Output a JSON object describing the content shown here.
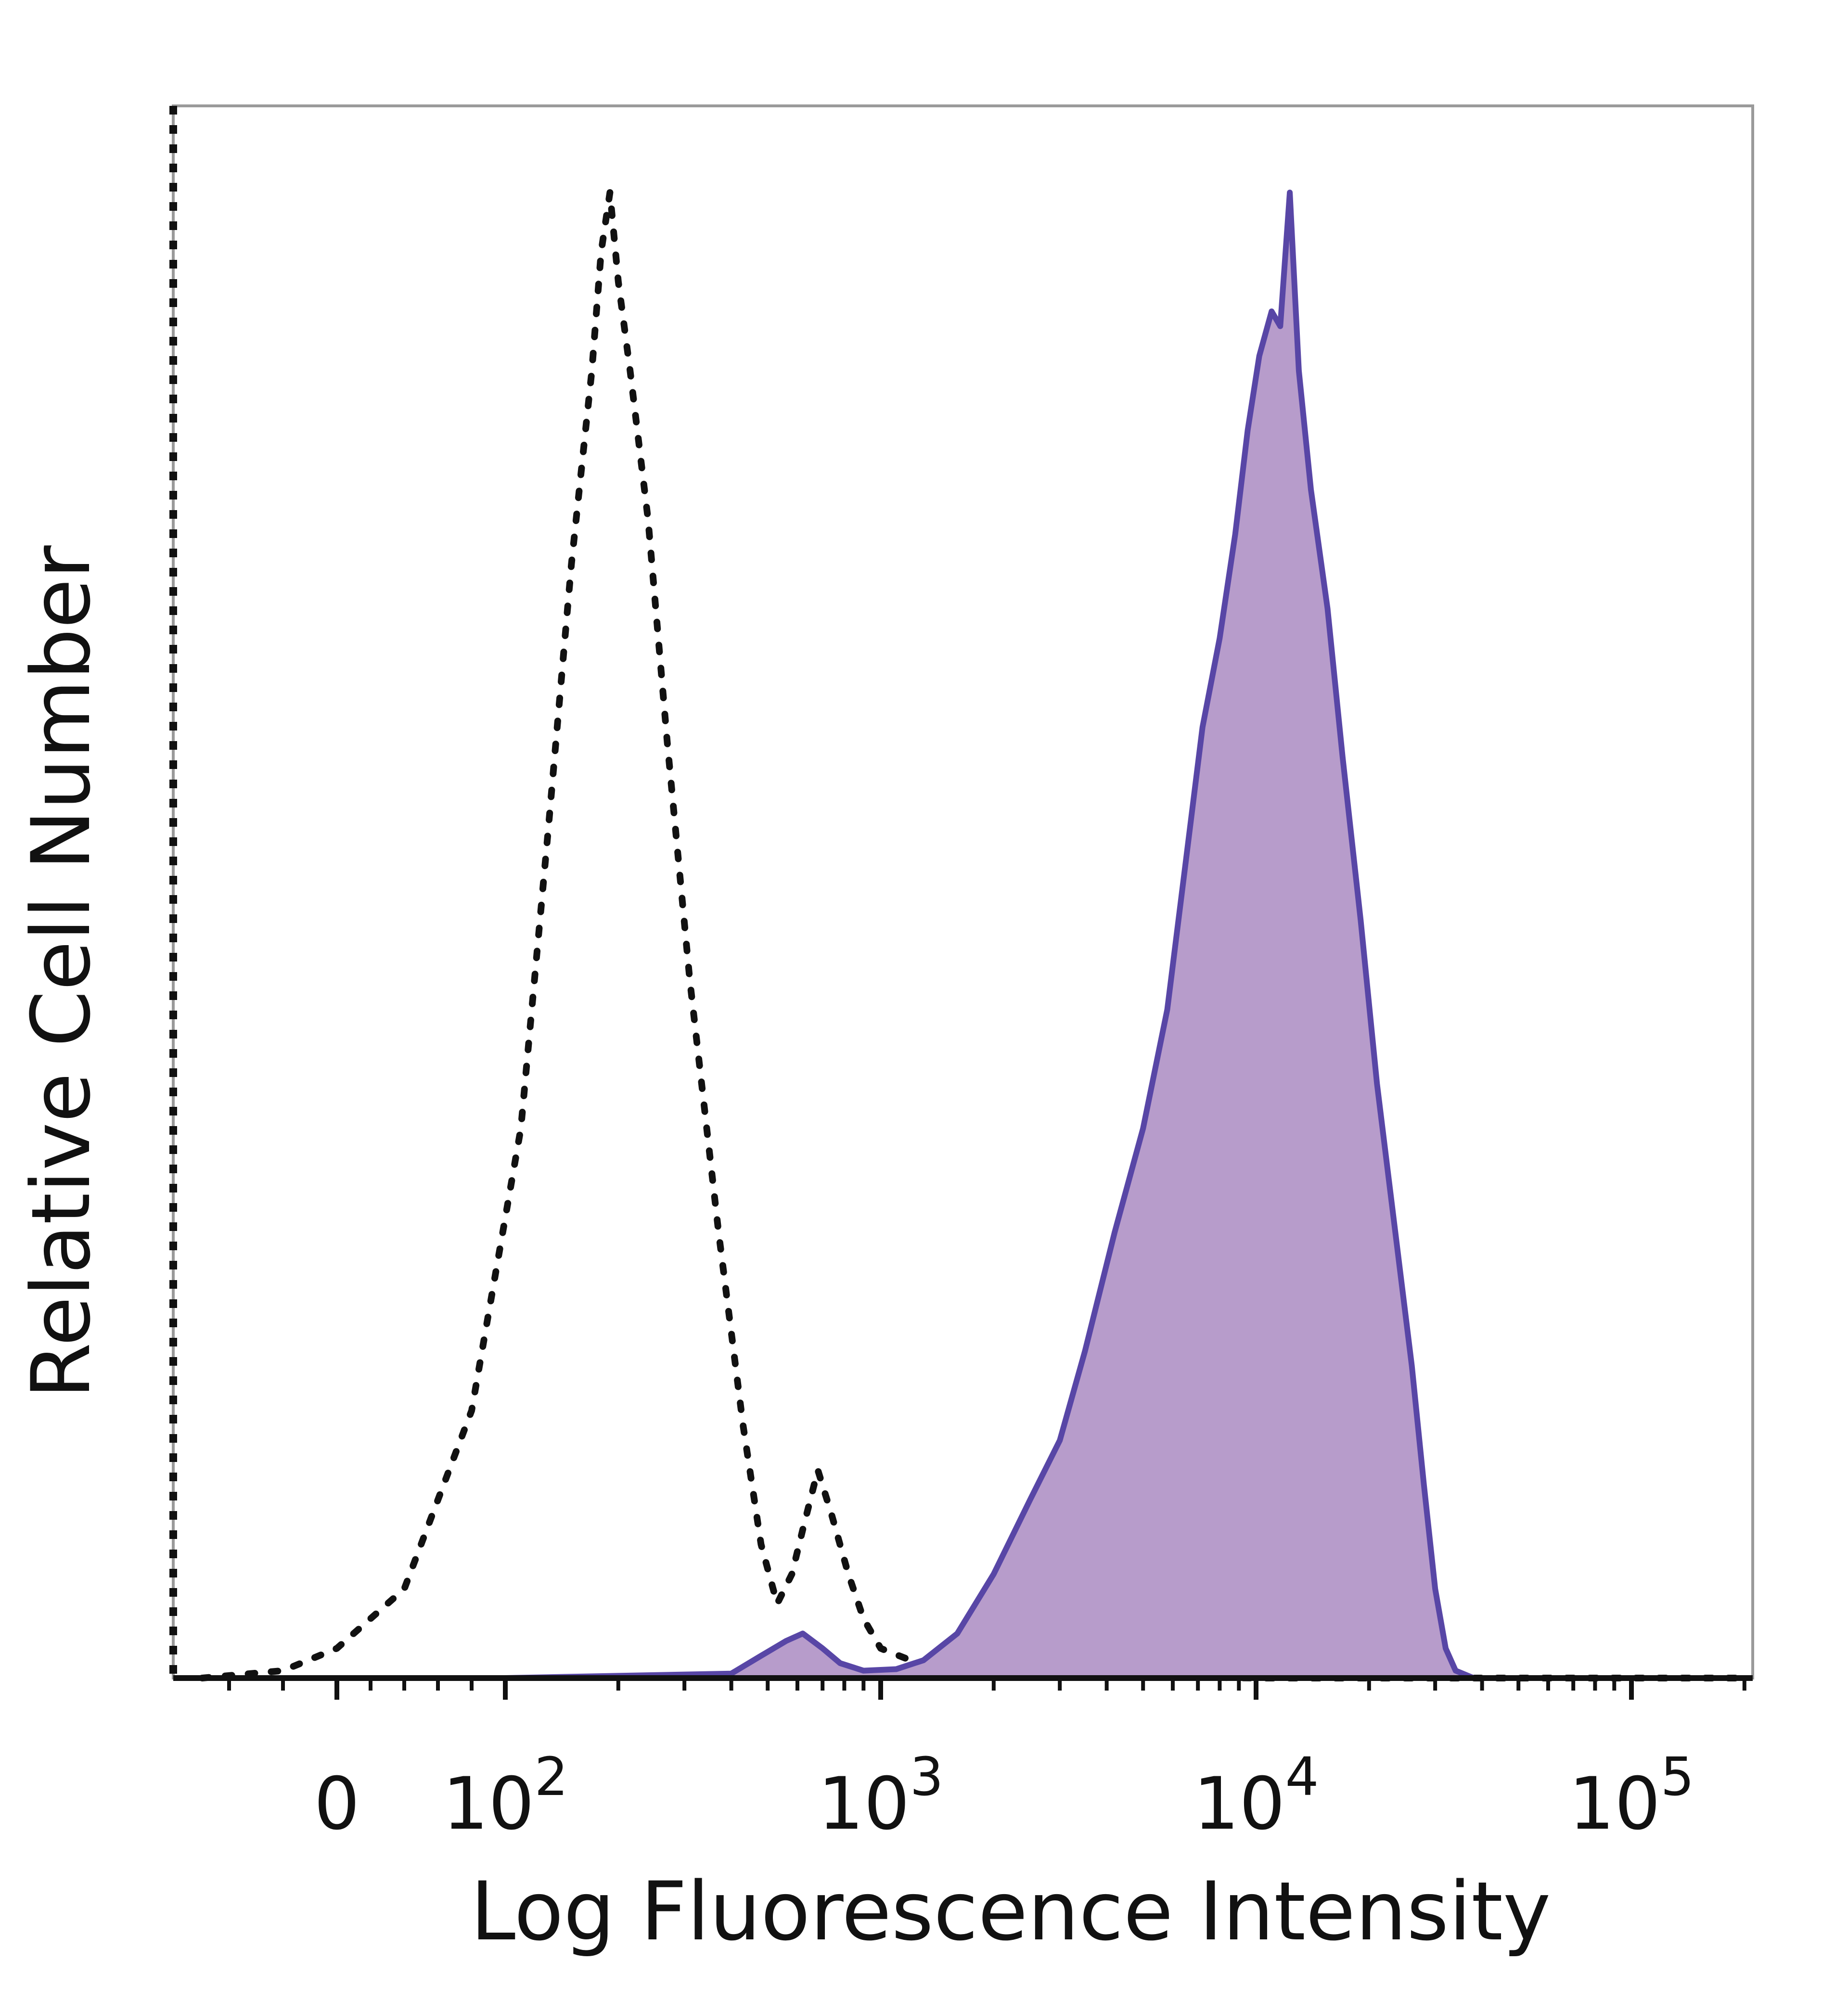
{
  "chart_data": {
    "type": "area",
    "title": "",
    "xlabel": "Log Fluorescence Intensity",
    "ylabel": "Relative Cell Number",
    "x_scale": "biexponential",
    "xlim": [
      -100,
      200000
    ],
    "ylim": [
      0,
      100
    ],
    "grid": false,
    "legend": "none",
    "x_ticks": [
      {
        "value": 0,
        "base": "0",
        "exp": ""
      },
      {
        "value": 100,
        "base": "10",
        "exp": "2"
      },
      {
        "value": 1000,
        "base": "10",
        "exp": "3"
      },
      {
        "value": 10000,
        "base": "10",
        "exp": "4"
      },
      {
        "value": 100000,
        "base": "10",
        "exp": "5"
      }
    ],
    "series": [
      {
        "style": "dotted",
        "color": "#111111",
        "fill": "none",
        "points": [
          [
            -100,
            0
          ],
          [
            -40,
            0.5
          ],
          [
            0,
            2
          ],
          [
            40,
            6
          ],
          [
            80,
            18
          ],
          [
            110,
            37
          ],
          [
            130,
            57
          ],
          [
            150,
            75
          ],
          [
            170,
            88
          ],
          [
            180,
            96
          ],
          [
            190,
            100
          ],
          [
            200,
            94
          ],
          [
            215,
            88
          ],
          [
            240,
            78
          ],
          [
            270,
            63
          ],
          [
            310,
            47
          ],
          [
            370,
            30
          ],
          [
            430,
            17
          ],
          [
            480,
            9
          ],
          [
            530,
            5
          ],
          [
            580,
            7
          ],
          [
            620,
            10
          ],
          [
            680,
            14
          ],
          [
            740,
            11
          ],
          [
            820,
            7
          ],
          [
            900,
            4
          ],
          [
            1000,
            2
          ],
          [
            1200,
            1.2
          ],
          [
            1600,
            0.5
          ],
          [
            3000,
            0.2
          ],
          [
            10000,
            0
          ],
          [
            200000,
            0
          ]
        ]
      },
      {
        "style": "solid",
        "color": "#5846a6",
        "fill": "#b79ccb",
        "points": [
          [
            -100,
            0
          ],
          [
            100,
            0
          ],
          [
            400,
            0.3
          ],
          [
            480,
            1.5
          ],
          [
            560,
            2.5
          ],
          [
            620,
            3
          ],
          [
            700,
            2
          ],
          [
            780,
            1
          ],
          [
            900,
            0.5
          ],
          [
            1100,
            0.6
          ],
          [
            1300,
            1.2
          ],
          [
            1600,
            3
          ],
          [
            2000,
            7
          ],
          [
            2500,
            12
          ],
          [
            3000,
            16
          ],
          [
            3500,
            22
          ],
          [
            4200,
            30
          ],
          [
            5000,
            37
          ],
          [
            5800,
            45
          ],
          [
            6500,
            55
          ],
          [
            7200,
            64
          ],
          [
            8000,
            70
          ],
          [
            8800,
            77
          ],
          [
            9500,
            84
          ],
          [
            10200,
            89
          ],
          [
            11000,
            92
          ],
          [
            11600,
            91
          ],
          [
            12300,
            100
          ],
          [
            13000,
            88
          ],
          [
            14000,
            80
          ],
          [
            15500,
            72
          ],
          [
            17000,
            62
          ],
          [
            19000,
            51
          ],
          [
            21000,
            40
          ],
          [
            23500,
            30
          ],
          [
            26000,
            21
          ],
          [
            28000,
            13
          ],
          [
            30000,
            6
          ],
          [
            32000,
            2
          ],
          [
            34000,
            0.5
          ],
          [
            38000,
            0
          ],
          [
            200000,
            0
          ]
        ]
      }
    ]
  }
}
